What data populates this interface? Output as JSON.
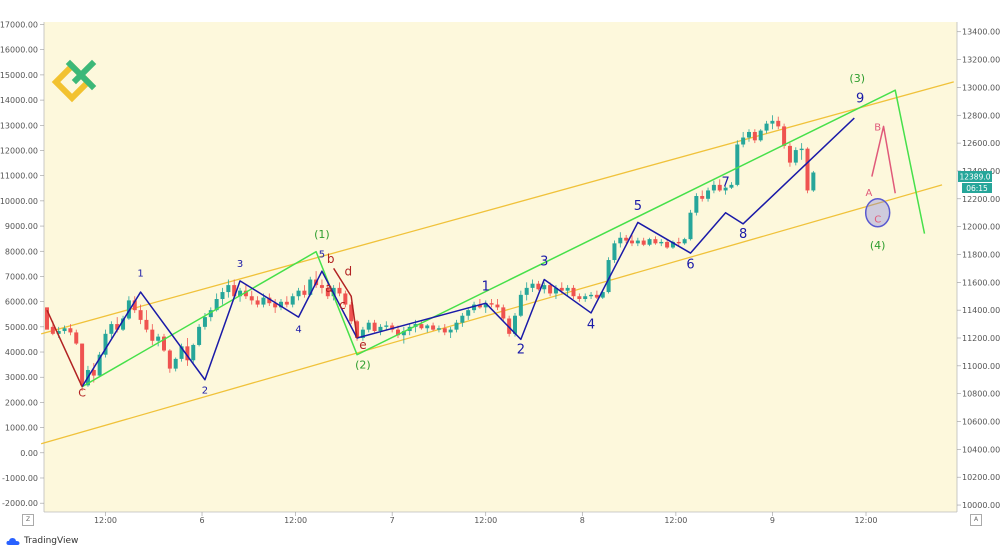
{
  "chart_data": {
    "type": "candlestick",
    "left_axis": {
      "ticks": [
        "17000.00",
        "16000.00",
        "15000.00",
        "14000.00",
        "13000.00",
        "12000.00",
        "11000.00",
        "10000.00",
        "9000.00",
        "8000.00",
        "7000.00",
        "6000.00",
        "5000.00",
        "4000.00",
        "3000.00",
        "2000.00",
        "1000.00",
        "0.00",
        "-1000.00",
        "-2000.00"
      ],
      "range": [
        -2350,
        17100
      ]
    },
    "right_axis": {
      "ticks": [
        "13400.00",
        "13200.00",
        "13000.00",
        "12800.00",
        "12600.00",
        "12400.00",
        "12200.00",
        "12000.00",
        "11800.00",
        "11600.00",
        "11400.00",
        "11200.00",
        "11000.00",
        "10800.00",
        "10600.00",
        "10400.00",
        "10200.00",
        "10000.00"
      ],
      "range": [
        9950,
        13470
      ],
      "price_badge": "12389.0",
      "time_badge": "06:15",
      "badge_color": "#26a69a"
    },
    "x_axis": {
      "ticks": [
        "12:00",
        "6",
        "12:00",
        "7",
        "12:00",
        "8",
        "12:00",
        "9",
        "12:00"
      ]
    },
    "candles": [
      [
        11420,
        11420,
        11280,
        11260
      ],
      [
        11280,
        11320,
        11220,
        11230
      ],
      [
        11230,
        11280,
        11200,
        11250
      ],
      [
        11250,
        11290,
        11230,
        11270
      ],
      [
        11270,
        11300,
        11220,
        11240
      ],
      [
        11240,
        11260,
        11150,
        11160
      ],
      [
        11160,
        11160,
        10820,
        10860
      ],
      [
        10860,
        11000,
        10850,
        10970
      ],
      [
        10970,
        11020,
        10880,
        10930
      ],
      [
        10930,
        11100,
        10920,
        11080
      ],
      [
        11080,
        11260,
        11060,
        11230
      ],
      [
        11230,
        11320,
        11200,
        11300
      ],
      [
        11300,
        11350,
        11240,
        11260
      ],
      [
        11260,
        11360,
        11250,
        11340
      ],
      [
        11340,
        11500,
        11330,
        11470
      ],
      [
        11470,
        11500,
        11380,
        11400
      ],
      [
        11400,
        11440,
        11300,
        11330
      ],
      [
        11330,
        11400,
        11240,
        11260
      ],
      [
        11260,
        11300,
        11150,
        11180
      ],
      [
        11180,
        11230,
        11140,
        11210
      ],
      [
        11210,
        11230,
        11100,
        11110
      ],
      [
        11110,
        11120,
        10950,
        10980
      ],
      [
        10980,
        11060,
        10960,
        11050
      ],
      [
        11050,
        11160,
        11030,
        11140
      ],
      [
        11140,
        11200,
        11000,
        11040
      ],
      [
        11040,
        11160,
        11020,
        11150
      ],
      [
        11150,
        11300,
        11140,
        11280
      ],
      [
        11280,
        11380,
        11260,
        11350
      ],
      [
        11350,
        11420,
        11320,
        11400
      ],
      [
        11400,
        11520,
        11390,
        11480
      ],
      [
        11480,
        11560,
        11440,
        11530
      ],
      [
        11530,
        11620,
        11490,
        11580
      ],
      [
        11580,
        11620,
        11480,
        11500
      ],
      [
        11500,
        11560,
        11460,
        11540
      ],
      [
        11540,
        11580,
        11480,
        11500
      ],
      [
        11500,
        11540,
        11440,
        11470
      ],
      [
        11470,
        11500,
        11420,
        11440
      ],
      [
        11440,
        11520,
        11420,
        11490
      ],
      [
        11490,
        11520,
        11430,
        11450
      ],
      [
        11450,
        11480,
        11380,
        11420
      ],
      [
        11420,
        11480,
        11400,
        11460
      ],
      [
        11460,
        11500,
        11420,
        11440
      ],
      [
        11440,
        11520,
        11420,
        11500
      ],
      [
        11500,
        11560,
        11470,
        11540
      ],
      [
        11540,
        11580,
        11490,
        11510
      ],
      [
        11510,
        11640,
        11500,
        11620
      ],
      [
        11620,
        11680,
        11560,
        11580
      ],
      [
        11580,
        11620,
        11520,
        11560
      ],
      [
        11560,
        11600,
        11480,
        11500
      ],
      [
        11500,
        11580,
        11470,
        11560
      ],
      [
        11560,
        11600,
        11500,
        11520
      ],
      [
        11520,
        11540,
        11420,
        11440
      ],
      [
        11440,
        11460,
        11300,
        11320
      ],
      [
        11320,
        11330,
        11180,
        11200
      ],
      [
        11200,
        11280,
        11180,
        11260
      ],
      [
        11260,
        11330,
        11240,
        11310
      ],
      [
        11310,
        11330,
        11240,
        11250
      ],
      [
        11250,
        11300,
        11220,
        11280
      ],
      [
        11280,
        11320,
        11260,
        11290
      ],
      [
        11290,
        11310,
        11240,
        11260
      ],
      [
        11260,
        11290,
        11200,
        11220
      ],
      [
        11220,
        11280,
        11160,
        11250
      ],
      [
        11250,
        11300,
        11220,
        11280
      ],
      [
        11280,
        11330,
        11240,
        11300
      ],
      [
        11300,
        11320,
        11260,
        11270
      ],
      [
        11270,
        11300,
        11240,
        11290
      ],
      [
        11290,
        11310,
        11250,
        11260
      ],
      [
        11260,
        11290,
        11240,
        11270
      ],
      [
        11270,
        11300,
        11220,
        11240
      ],
      [
        11240,
        11280,
        11200,
        11260
      ],
      [
        11260,
        11330,
        11240,
        11310
      ],
      [
        11310,
        11380,
        11280,
        11360
      ],
      [
        11360,
        11420,
        11330,
        11400
      ],
      [
        11400,
        11460,
        11380,
        11440
      ],
      [
        11440,
        11480,
        11410,
        11420
      ],
      [
        11420,
        11470,
        11380,
        11450
      ],
      [
        11450,
        11480,
        11420,
        11440
      ],
      [
        11440,
        11480,
        11400,
        11420
      ],
      [
        11420,
        11440,
        11320,
        11340
      ],
      [
        11340,
        11360,
        11210,
        11230
      ],
      [
        11230,
        11380,
        11210,
        11360
      ],
      [
        11360,
        11540,
        11350,
        11510
      ],
      [
        11510,
        11600,
        11470,
        11560
      ],
      [
        11560,
        11620,
        11530,
        11590
      ],
      [
        11590,
        11610,
        11540,
        11550
      ],
      [
        11550,
        11600,
        11520,
        11580
      ],
      [
        11580,
        11600,
        11500,
        11520
      ],
      [
        11520,
        11580,
        11480,
        11560
      ],
      [
        11560,
        11600,
        11520,
        11540
      ],
      [
        11540,
        11580,
        11500,
        11560
      ],
      [
        11560,
        11580,
        11480,
        11500
      ],
      [
        11500,
        11520,
        11460,
        11480
      ],
      [
        11480,
        11520,
        11460,
        11500
      ],
      [
        11500,
        11530,
        11480,
        11510
      ],
      [
        11510,
        11540,
        11480,
        11490
      ],
      [
        11490,
        11540,
        11480,
        11530
      ],
      [
        11530,
        11780,
        11520,
        11760
      ],
      [
        11760,
        11900,
        11740,
        11880
      ],
      [
        11880,
        11960,
        11850,
        11920
      ],
      [
        11920,
        11940,
        11880,
        11900
      ],
      [
        11900,
        11940,
        11860,
        11880
      ],
      [
        11880,
        11920,
        11860,
        11900
      ],
      [
        11900,
        11920,
        11860,
        11870
      ],
      [
        11870,
        11920,
        11860,
        11910
      ],
      [
        11910,
        11930,
        11870,
        11880
      ],
      [
        11880,
        11910,
        11860,
        11890
      ],
      [
        11890,
        11910,
        11840,
        11850
      ],
      [
        11850,
        11900,
        11840,
        11890
      ],
      [
        11890,
        11920,
        11860,
        11880
      ],
      [
        11880,
        11920,
        11870,
        11910
      ],
      [
        11910,
        12120,
        11900,
        12100
      ],
      [
        12100,
        12240,
        12080,
        12220
      ],
      [
        12220,
        12260,
        12180,
        12200
      ],
      [
        12200,
        12280,
        12180,
        12260
      ],
      [
        12260,
        12330,
        12240,
        12300
      ],
      [
        12300,
        12340,
        12250,
        12260
      ],
      [
        12260,
        12290,
        12230,
        12280
      ],
      [
        12280,
        12320,
        12270,
        12300
      ],
      [
        12300,
        12620,
        12290,
        12590
      ],
      [
        12590,
        12680,
        12570,
        12640
      ],
      [
        12640,
        12700,
        12610,
        12680
      ],
      [
        12680,
        12700,
        12600,
        12620
      ],
      [
        12620,
        12700,
        12610,
        12690
      ],
      [
        12690,
        12760,
        12670,
        12740
      ],
      [
        12740,
        12800,
        12700,
        12760
      ],
      [
        12760,
        12790,
        12700,
        12720
      ],
      [
        12720,
        12740,
        12560,
        12580
      ],
      [
        12580,
        12600,
        12430,
        12460
      ],
      [
        12460,
        12570,
        12440,
        12550
      ],
      [
        12550,
        12600,
        12480,
        12560
      ],
      [
        12560,
        12570,
        12240,
        12260
      ],
      [
        12260,
        12400,
        12250,
        12389
      ]
    ],
    "channel_lines": [
      {
        "color": "#f0c23a",
        "points": [
          [
            "L",
            8,
            11220
          ],
          [
            "L",
            152,
            13010
          ]
        ]
      },
      {
        "color": "#f0c23a",
        "points": [
          [
            "L",
            6,
            10440
          ],
          [
            "L",
            150,
            12270
          ]
        ]
      }
    ],
    "overlay_lines": [
      {
        "color": "#46e04a",
        "points": [
          [
            6,
            10850
          ],
          [
            46,
            11820
          ],
          [
            53,
            11080
          ],
          [
            145,
            12980
          ],
          [
            150,
            11950
          ]
        ]
      },
      {
        "color": "#1a1aa8",
        "points": [
          [
            6,
            10850
          ],
          [
            16,
            11530
          ],
          [
            27,
            10900
          ],
          [
            33,
            11610
          ],
          [
            43,
            11350
          ],
          [
            47,
            11680
          ],
          [
            53,
            11200
          ],
          [
            75,
            11450
          ],
          [
            81,
            11190
          ],
          [
            85,
            11620
          ],
          [
            93,
            11380
          ],
          [
            101,
            12030
          ],
          [
            110,
            11810
          ],
          [
            116,
            12100
          ],
          [
            119,
            12020
          ],
          [
            138,
            12780
          ]
        ]
      },
      {
        "color": "#b22222",
        "points": [
          [
            0,
            11400
          ],
          [
            6,
            10850
          ]
        ]
      },
      {
        "color": "#b22222",
        "points": [
          [
            49,
            11700
          ],
          [
            52,
            11500
          ],
          [
            53,
            11200
          ]
        ]
      },
      {
        "color": "#e05a7a",
        "points": [
          [
            141,
            12360
          ],
          [
            143,
            12720
          ],
          [
            145,
            12240
          ]
        ]
      }
    ],
    "wave_labels": [
      {
        "text": "C",
        "i": 6,
        "v": 10780,
        "color": "#b22222",
        "size": 11
      },
      {
        "text": "1",
        "i": 16,
        "v": 11640,
        "color": "#1a1aa8",
        "size": 10
      },
      {
        "text": "2",
        "i": 27,
        "v": 10800,
        "color": "#1a1aa8",
        "size": 10
      },
      {
        "text": "3",
        "i": 33,
        "v": 11710,
        "color": "#1a1aa8",
        "size": 10
      },
      {
        "text": "4",
        "i": 43,
        "v": 11240,
        "color": "#1a1aa8",
        "size": 10
      },
      {
        "text": "5",
        "i": 47,
        "v": 11780,
        "color": "#1a1aa8",
        "size": 10
      },
      {
        "text": "(1)",
        "i": 47,
        "v": 11920,
        "color": "#2e9e2e",
        "size": 11
      },
      {
        "text": "b",
        "i": 48.5,
        "v": 11740,
        "color": "#b22222",
        "size": 12
      },
      {
        "text": "a",
        "i": 48.2,
        "v": 11530,
        "color": "#b22222",
        "size": 12
      },
      {
        "text": "d",
        "i": 51.5,
        "v": 11650,
        "color": "#b22222",
        "size": 12
      },
      {
        "text": "c",
        "i": 50.5,
        "v": 11410,
        "color": "#b22222",
        "size": 12
      },
      {
        "text": "e",
        "i": 54,
        "v": 11120,
        "color": "#b22222",
        "size": 12
      },
      {
        "text": "(2)",
        "i": 54,
        "v": 10980,
        "color": "#2e9e2e",
        "size": 11
      },
      {
        "text": "1",
        "i": 75,
        "v": 11540,
        "color": "#1a1aa8",
        "size": 13
      },
      {
        "text": "2",
        "i": 81,
        "v": 11090,
        "color": "#1a1aa8",
        "size": 13
      },
      {
        "text": "3",
        "i": 85,
        "v": 11720,
        "color": "#1a1aa8",
        "size": 13
      },
      {
        "text": "4",
        "i": 93,
        "v": 11270,
        "color": "#1a1aa8",
        "size": 13
      },
      {
        "text": "5",
        "i": 101,
        "v": 12120,
        "color": "#1a1aa8",
        "size": 13
      },
      {
        "text": "6",
        "i": 110,
        "v": 11700,
        "color": "#1a1aa8",
        "size": 13
      },
      {
        "text": "7",
        "i": 116,
        "v": 12290,
        "color": "#1a1aa8",
        "size": 13
      },
      {
        "text": "8",
        "i": 119,
        "v": 11920,
        "color": "#1a1aa8",
        "size": 13
      },
      {
        "text": "9",
        "i": 139,
        "v": 12890,
        "color": "#1a1aa8",
        "size": 13
      },
      {
        "text": "(3)",
        "i": 138.5,
        "v": 13040,
        "color": "#2e9e2e",
        "size": 11
      },
      {
        "text": "B",
        "i": 142,
        "v": 12690,
        "color": "#e05a7a",
        "size": 10
      },
      {
        "text": "A",
        "i": 140.5,
        "v": 12220,
        "color": "#e05a7a",
        "size": 10
      },
      {
        "text": "C",
        "i": 142,
        "v": 12030,
        "color": "#e05a7a",
        "size": 10
      },
      {
        "text": "(4)",
        "i": 142,
        "v": 11840,
        "color": "#2e9e2e",
        "size": 11
      }
    ],
    "circle": {
      "i": 142,
      "v": 12100,
      "color": "#5a5ad0"
    },
    "grid": false,
    "colors": {
      "up": "#26a69a",
      "down": "#ef5350",
      "background": "#fdf8dc"
    }
  },
  "footer": {
    "brand": "TradingView"
  },
  "buttons": {
    "z": "Z",
    "a": "A"
  }
}
